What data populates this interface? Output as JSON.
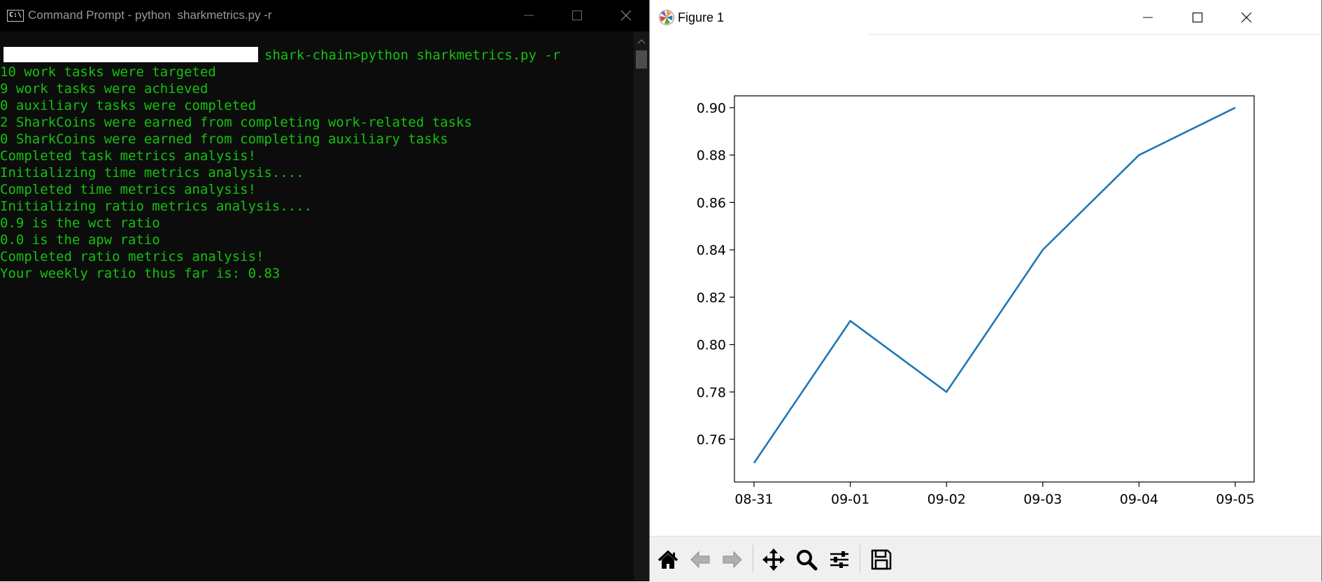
{
  "cmd": {
    "title": "Command Prompt - python  sharkmetrics.py -r",
    "prompt_suffix": "shark-chain>python sharkmetrics.py -r",
    "lines": [
      "10 work tasks were targeted",
      "9 work tasks were achieved",
      "0 auxiliary tasks were completed",
      "2 SharkCoins were earned from completing work-related tasks",
      "0 SharkCoins were earned from completing auxiliary tasks",
      "Completed task metrics analysis!",
      "Initializing time metrics analysis....",
      "Completed time metrics analysis!",
      "Initializing ratio metrics analysis....",
      "0.9 is the wct ratio",
      "0.0 is the apw ratio",
      "Completed ratio metrics analysis!",
      "Your weekly ratio thus far is: 0.83"
    ],
    "text_color": "#13c20f",
    "background": "#0c0c0c"
  },
  "figure": {
    "title": "Figure 1",
    "toolbar": [
      "home-icon",
      "back-icon",
      "forward-icon",
      "pan-icon",
      "zoom-icon",
      "configure-subplots-icon",
      "save-icon"
    ]
  },
  "chart_data": {
    "type": "line",
    "x": [
      "08-31",
      "09-01",
      "09-02",
      "09-03",
      "09-04",
      "09-05"
    ],
    "series": [
      {
        "values": [
          0.75,
          0.81,
          0.78,
          0.84,
          0.88,
          0.9
        ],
        "color": "#1f77b4"
      }
    ],
    "title": "",
    "xlabel": "",
    "ylabel": "",
    "ylim": [
      0.742,
      0.905
    ],
    "yticks": [
      0.76,
      0.78,
      0.8,
      0.82,
      0.84,
      0.86,
      0.88,
      0.9
    ],
    "ytick_labels": [
      "0.76",
      "0.78",
      "0.80",
      "0.82",
      "0.84",
      "0.86",
      "0.88",
      "0.90"
    ],
    "grid": false,
    "legend": "none"
  }
}
